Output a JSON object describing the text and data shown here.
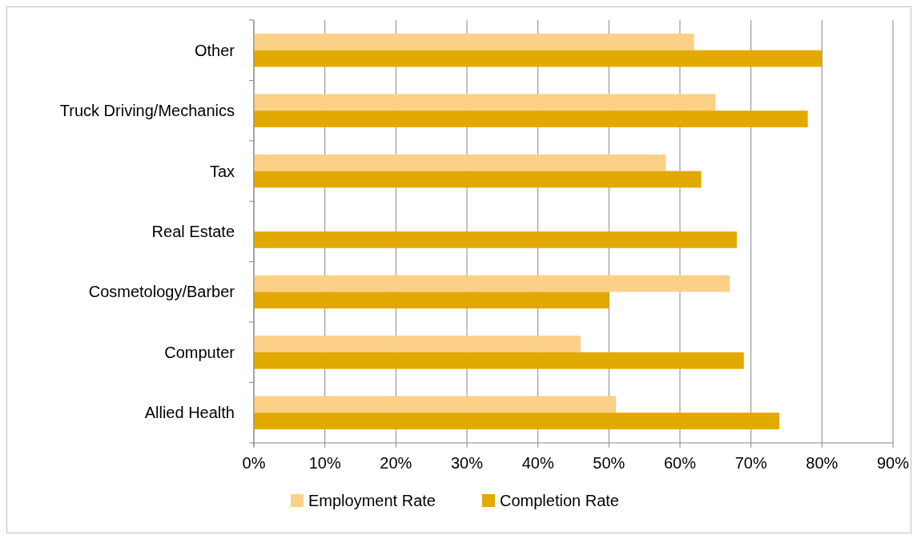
{
  "chart_data": {
    "type": "bar",
    "orientation": "horizontal",
    "categories": [
      "Other",
      "Truck Driving/Mechanics",
      "Tax",
      "Real Estate",
      "Cosmetology/Barber",
      "Computer",
      "Allied Health"
    ],
    "series": [
      {
        "name": "Employment Rate",
        "color": "#fdd088",
        "values": [
          62,
          65,
          58,
          null,
          67,
          46,
          51
        ]
      },
      {
        "name": "Completion Rate",
        "color": "#e2a900",
        "values": [
          80,
          78,
          63,
          68,
          50,
          69,
          74
        ]
      }
    ],
    "xlim": [
      0,
      90
    ],
    "xticks": [
      {
        "value": 0,
        "label": "0%"
      },
      {
        "value": 10,
        "label": "10%"
      },
      {
        "value": 20,
        "label": "20%"
      },
      {
        "value": 30,
        "label": "30%"
      },
      {
        "value": 40,
        "label": "40%"
      },
      {
        "value": 50,
        "label": "50%"
      },
      {
        "value": 60,
        "label": "60%"
      },
      {
        "value": 70,
        "label": "70%"
      },
      {
        "value": 80,
        "label": "80%"
      },
      {
        "value": 90,
        "label": "90%"
      }
    ],
    "grid": "x",
    "legend": "bottom"
  }
}
